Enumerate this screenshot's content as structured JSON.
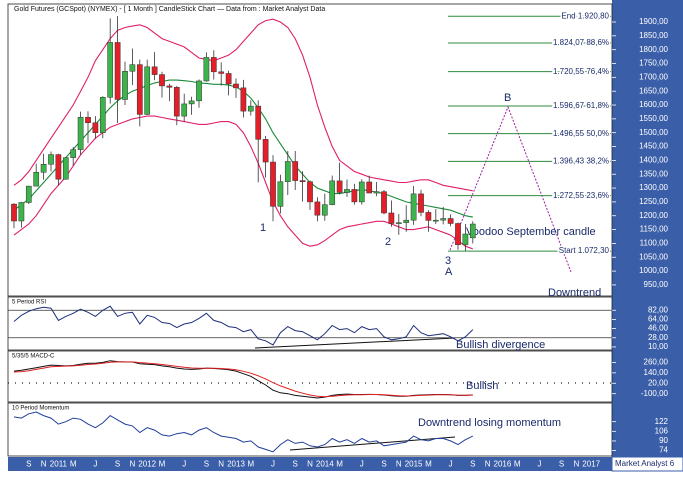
{
  "chart_data": {
    "type": "candlestick",
    "title": "Gold Futures (GCSpot) (NYMEX) - [ 1 Month ] CandleStick Chart — Data from : Market Analyst Data",
    "categories": [
      null,
      null,
      "S",
      null,
      "N",
      null,
      "2011",
      null,
      "M",
      null,
      null,
      "J",
      null,
      null,
      "S",
      null,
      "N",
      null,
      "2012",
      null,
      "M",
      null,
      null,
      "J",
      null,
      null,
      "S",
      null,
      "N",
      null,
      "2013",
      null,
      "M",
      null,
      null,
      "J",
      null,
      null,
      "S",
      null,
      "N",
      null,
      "2014",
      null,
      "M",
      null,
      null,
      "J",
      null,
      null,
      "S",
      null,
      "N",
      null,
      "2015",
      null,
      "M",
      null,
      null,
      "J",
      null,
      null,
      "S",
      null,
      "N",
      null,
      "2016",
      null,
      "M",
      null,
      null,
      "J",
      null,
      null,
      "S",
      null,
      "N",
      null,
      "2017",
      null,
      null,
      null
    ],
    "open": [
      1242,
      1181,
      1248,
      1307,
      1357,
      1386,
      1421,
      1332,
      1410,
      1439,
      1556,
      1536,
      1500,
      1628,
      1826,
      1620,
      1722,
      1746,
      1566,
      1738,
      1710,
      1669,
      1664,
      1560,
      1604,
      1615,
      1687,
      1772,
      1720,
      1714,
      1676,
      1662,
      1578,
      1596,
      1476,
      1394,
      1234,
      1323,
      1396,
      1327,
      1323,
      1250,
      1202,
      1240,
      1326,
      1284,
      1295,
      1250,
      1322,
      1282,
      1287,
      1210,
      1172,
      1175,
      1184,
      1279,
      1212,
      1183,
      1184,
      1190,
      1172,
      1095,
      1120,
      null,
      null,
      null,
      null,
      null,
      null,
      null,
      null,
      null,
      null,
      null,
      null,
      null,
      null,
      null,
      null,
      null,
      null,
      null
    ],
    "high": [
      1245,
      1250,
      1308,
      1388,
      1424,
      1432,
      1424,
      1412,
      1448,
      1576,
      1577,
      1560,
      1632,
      1913,
      1921,
      1757,
      1804,
      1764,
      1764,
      1791,
      1720,
      1677,
      1669,
      1641,
      1630,
      1692,
      1790,
      1798,
      1754,
      1724,
      1696,
      1691,
      1617,
      1617,
      1488,
      1419,
      1348,
      1434,
      1434,
      1361,
      1327,
      1267,
      1280,
      1345,
      1392,
      1331,
      1315,
      1332,
      1345,
      1322,
      1293,
      1255,
      1206,
      1238,
      1307,
      1294,
      1220,
      1224,
      1232,
      1205,
      1175,
      1170,
      1180,
      null,
      null,
      null,
      null,
      null,
      null,
      null,
      null,
      null,
      null,
      null,
      null,
      null,
      null,
      null,
      null,
      null,
      null,
      null
    ],
    "low": [
      1155,
      1157,
      1242,
      1313,
      1330,
      1360,
      1309,
      1330,
      1381,
      1420,
      1462,
      1478,
      1480,
      1605,
      1535,
      1600,
      1672,
      1523,
      1564,
      1690,
      1627,
      1614,
      1527,
      1540,
      1565,
      1590,
      1684,
      1692,
      1670,
      1635,
      1626,
      1555,
      1562,
      1321,
      1338,
      1180,
      1208,
      1275,
      1293,
      1251,
      1221,
      1180,
      1182,
      1238,
      1277,
      1268,
      1240,
      1240,
      1282,
      1271,
      1205,
      1160,
      1131,
      1142,
      1167,
      1198,
      1142,
      1170,
      1169,
      1162,
      1077,
      1072,
      1100,
      null,
      null,
      null,
      null,
      null,
      null,
      null,
      null,
      null,
      null,
      null,
      null,
      null,
      null,
      null,
      null,
      null,
      null,
      null
    ],
    "close": [
      1181,
      1248,
      1307,
      1357,
      1386,
      1421,
      1332,
      1410,
      1439,
      1556,
      1536,
      1500,
      1628,
      1826,
      1620,
      1722,
      1746,
      1566,
      1738,
      1710,
      1669,
      1664,
      1560,
      1604,
      1615,
      1687,
      1772,
      1720,
      1714,
      1676,
      1662,
      1578,
      1596,
      1476,
      1394,
      1234,
      1323,
      1396,
      1327,
      1323,
      1250,
      1202,
      1240,
      1326,
      1284,
      1295,
      1250,
      1322,
      1282,
      1287,
      1210,
      1172,
      1175,
      1184,
      1279,
      1212,
      1183,
      1184,
      1190,
      1172,
      1095,
      1134,
      1170,
      null,
      null,
      null,
      null,
      null,
      null,
      null,
      null,
      null,
      null,
      null,
      null,
      null,
      null,
      null,
      null,
      null,
      null,
      null
    ],
    "up_color": "#3cb44b",
    "down_color": "#e3202a",
    "overlays": [
      {
        "color": "#e0206a",
        "values": [
          1310,
          1330,
          1360,
          1400,
          1440,
          1480,
          1520,
          1560,
          1600,
          1650,
          1700,
          1760,
          1800,
          1840,
          1870,
          1880,
          1885,
          1890,
          1880,
          1860,
          1840,
          1830,
          1820,
          1810,
          1790,
          1770,
          1765,
          1760,
          1770,
          1780,
          1800,
          1830,
          1860,
          1890,
          1905,
          1910,
          1900,
          1880,
          1840,
          1780,
          1700,
          1600,
          1520,
          1450,
          1400,
          1380,
          1360,
          1350,
          1340,
          1335,
          1330,
          1325,
          1320,
          1320,
          1325,
          1330,
          1330,
          1320,
          1310,
          1305,
          1300,
          1295,
          1290,
          null,
          null,
          null,
          null,
          null,
          null,
          null,
          null,
          null,
          null,
          null,
          null,
          null,
          null,
          null,
          null,
          null,
          null,
          null
        ]
      },
      {
        "color": "#e0206a",
        "values": [
          1130,
          1150,
          1170,
          1200,
          1240,
          1280,
          1310,
          1340,
          1380,
          1420,
          1450,
          1480,
          1500,
          1520,
          1530,
          1540,
          1550,
          1555,
          1560,
          1560,
          1555,
          1550,
          1545,
          1540,
          1535,
          1530,
          1530,
          1535,
          1540,
          1540,
          1530,
          1500,
          1450,
          1390,
          1320,
          1250,
          1200,
          1160,
          1130,
          1100,
          1090,
          1095,
          1110,
          1130,
          1150,
          1160,
          1165,
          1170,
          1175,
          1180,
          1180,
          1170,
          1160,
          1150,
          1150,
          1155,
          1160,
          1150,
          1140,
          1130,
          1110,
          1090,
          1080,
          null,
          null,
          null,
          null,
          null,
          null,
          null,
          null,
          null,
          null,
          null,
          null,
          null,
          null,
          null,
          null,
          null,
          null,
          null
        ]
      },
      {
        "color": "#1a8a3a",
        "values": [
          1220,
          1240,
          1260,
          1290,
          1320,
          1350,
          1380,
          1410,
          1440,
          1470,
          1500,
          1530,
          1560,
          1590,
          1615,
          1635,
          1650,
          1660,
          1670,
          1680,
          1685,
          1690,
          1690,
          1688,
          1685,
          1680,
          1678,
          1675,
          1675,
          1672,
          1665,
          1650,
          1625,
          1590,
          1550,
          1500,
          1460,
          1420,
          1380,
          1350,
          1320,
          1300,
          1290,
          1280,
          1280,
          1285,
          1290,
          1295,
          1290,
          1285,
          1280,
          1270,
          1260,
          1250,
          1245,
          1240,
          1235,
          1230,
          1225,
          1220,
          1210,
          1200,
          1195,
          null,
          null,
          null,
          null,
          null,
          null,
          null,
          null,
          null,
          null,
          null,
          null,
          null,
          null,
          null,
          null,
          null,
          null,
          null
        ]
      }
    ],
    "ylim": [
      910,
      1965
    ],
    "yticks": [
      {
        "value": 950,
        "label": "950,00"
      },
      {
        "value": 1000,
        "label": "1000,00"
      },
      {
        "value": 1050,
        "label": "1050,00"
      },
      {
        "value": 1100,
        "label": "1100,00"
      },
      {
        "value": 1150,
        "label": "1150,00"
      },
      {
        "value": 1200,
        "label": "1200,00"
      },
      {
        "value": 1250,
        "label": "1250,00"
      },
      {
        "value": 1300,
        "label": "1300,00"
      },
      {
        "value": 1350,
        "label": "1350,00"
      },
      {
        "value": 1400,
        "label": "1400,00"
      },
      {
        "value": 1450,
        "label": "1450,00"
      },
      {
        "value": 1500,
        "label": "1500,00"
      },
      {
        "value": 1550,
        "label": "1550,00"
      },
      {
        "value": 1600,
        "label": "1600,00"
      },
      {
        "value": 1650,
        "label": "1650,00"
      },
      {
        "value": 1700,
        "label": "1700,00"
      },
      {
        "value": 1750,
        "label": "1750,00"
      },
      {
        "value": 1800,
        "label": "1800,00"
      },
      {
        "value": 1850,
        "label": "1850,00"
      },
      {
        "value": 1900,
        "label": "1900,00"
      }
    ],
    "fib_color": "#2e8b3e",
    "fib_levels": [
      {
        "value": 1920.8,
        "label": "End 1.920,80"
      },
      {
        "value": 1824.07,
        "label": "1.824,07 88,6%"
      },
      {
        "value": 1720.55,
        "label": "1.720,55 76,4%"
      },
      {
        "value": 1596.67,
        "label": "1.596,67 61,8%"
      },
      {
        "value": 1496.55,
        "label": "1.496,55 50,0%"
      },
      {
        "value": 1396.43,
        "label": "1.396,43 38,2%"
      },
      {
        "value": 1272.55,
        "label": "1.272,55 23,6%"
      },
      {
        "value": 1072.3,
        "label": "Start 1.072,30"
      }
    ],
    "annotations": [
      "1",
      "2",
      "3",
      "A",
      "B",
      "Voodoo September candle",
      "Downtrend",
      "Bullish divergence",
      "Bullish",
      "Downtrend losing momentum"
    ],
    "indicators": [
      {
        "type": "line",
        "title": "5 Period RSI",
        "ylim": [
          4,
          108
        ],
        "yticks": [
          {
            "value": 82,
            "label": "82,00"
          },
          {
            "value": 64,
            "label": "64,00"
          },
          {
            "value": 46,
            "label": "46,00"
          },
          {
            "value": 28,
            "label": "28,00"
          },
          {
            "value": 10,
            "label": "10,00"
          }
        ],
        "reference_lines": [
          82,
          28
        ],
        "series": [
          {
            "color": "#1f2f7a",
            "values": [
              60,
              72,
              80,
              85,
              88,
              86,
              62,
              70,
              76,
              84,
              78,
              70,
              82,
              90,
              70,
              76,
              78,
              55,
              72,
              68,
              58,
              56,
              48,
              55,
              58,
              66,
              76,
              62,
              58,
              50,
              48,
              40,
              44,
              26,
              22,
              14,
              38,
              50,
              42,
              40,
              32,
              24,
              36,
              52,
              44,
              46,
              38,
              50,
              44,
              46,
              30,
              24,
              26,
              30,
              52,
              38,
              32,
              34,
              36,
              30,
              22,
              30,
              44,
              null,
              null,
              null,
              null,
              null,
              null,
              null,
              null,
              null,
              null,
              null,
              null,
              null,
              null,
              null,
              null,
              null,
              null,
              null
            ]
          }
        ]
      },
      {
        "type": "line",
        "title": "5/35/5 MACD-C",
        "ylim": [
          -196,
          392
        ],
        "yticks": [
          {
            "value": 260,
            "label": "260,00"
          },
          {
            "value": 140,
            "label": "140,00"
          },
          {
            "value": 20,
            "label": "20,00"
          },
          {
            "value": -100,
            "label": "-100,00"
          }
        ],
        "series": [
          {
            "color": "#111111",
            "values": [
              160,
              170,
              185,
              200,
              215,
              230,
              225,
              220,
              225,
              240,
              250,
              250,
              260,
              280,
              270,
              265,
              265,
              245,
              240,
              235,
              220,
              210,
              195,
              185,
              180,
              185,
              195,
              190,
              185,
              175,
              160,
              130,
              100,
              50,
              0,
              -60,
              -90,
              -100,
              -120,
              -130,
              -140,
              -150,
              -140,
              -120,
              -110,
              -105,
              -110,
              -110,
              -108,
              -110,
              -115,
              -125,
              -130,
              -130,
              -120,
              -115,
              -112,
              -110,
              -110,
              -112,
              -120,
              -120,
              -115,
              null,
              null,
              null,
              null,
              null,
              null,
              null,
              null,
              null,
              null,
              null,
              null,
              null,
              null,
              null,
              null,
              null,
              null,
              null
            ]
          },
          {
            "color": "#e02020",
            "values": [
              150,
              155,
              165,
              180,
              195,
              210,
              215,
              218,
              220,
              228,
              236,
              242,
              250,
              262,
              266,
              266,
              266,
              258,
              252,
              246,
              236,
              226,
              214,
              204,
              196,
              192,
              193,
              192,
              190,
              185,
              175,
              158,
              136,
              106,
              70,
              28,
              -10,
              -40,
              -70,
              -95,
              -115,
              -130,
              -135,
              -130,
              -122,
              -115,
              -113,
              -112,
              -110,
              -110,
              -112,
              -118,
              -124,
              -127,
              -124,
              -120,
              -116,
              -113,
              -112,
              -112,
              -116,
              -118,
              -117,
              null,
              null,
              null,
              null,
              null,
              null,
              null,
              null,
              null,
              null,
              null,
              null,
              null,
              null,
              null,
              null,
              null,
              null,
              null
            ]
          }
        ]
      },
      {
        "type": "line",
        "title": "10 Period Momentum",
        "ylim": [
          65,
          153
        ],
        "yticks": [
          122,
          106,
          90,
          74
        ],
        "series": [
          {
            "color": "#1f3f9a",
            "values": [
              130,
              128,
              135,
              138,
              132,
              128,
              118,
              122,
              128,
              126,
              118,
              112,
              120,
              132,
              125,
              118,
              115,
              104,
              112,
              108,
              100,
              98,
              102,
              104,
              100,
              108,
              112,
              104,
              98,
              96,
              94,
              88,
              90,
              80,
              76,
              72,
              84,
              92,
              86,
              88,
              82,
              80,
              84,
              94,
              88,
              92,
              86,
              94,
              88,
              90,
              82,
              84,
              86,
              88,
              98,
              92,
              90,
              94,
              94,
              90,
              84,
              92,
              98,
              null,
              null,
              null,
              null,
              null,
              null,
              null,
              null,
              null,
              null,
              null,
              null,
              null,
              null,
              null,
              null,
              null,
              null,
              null
            ]
          }
        ]
      }
    ],
    "footer": "Market Analyst 6"
  }
}
